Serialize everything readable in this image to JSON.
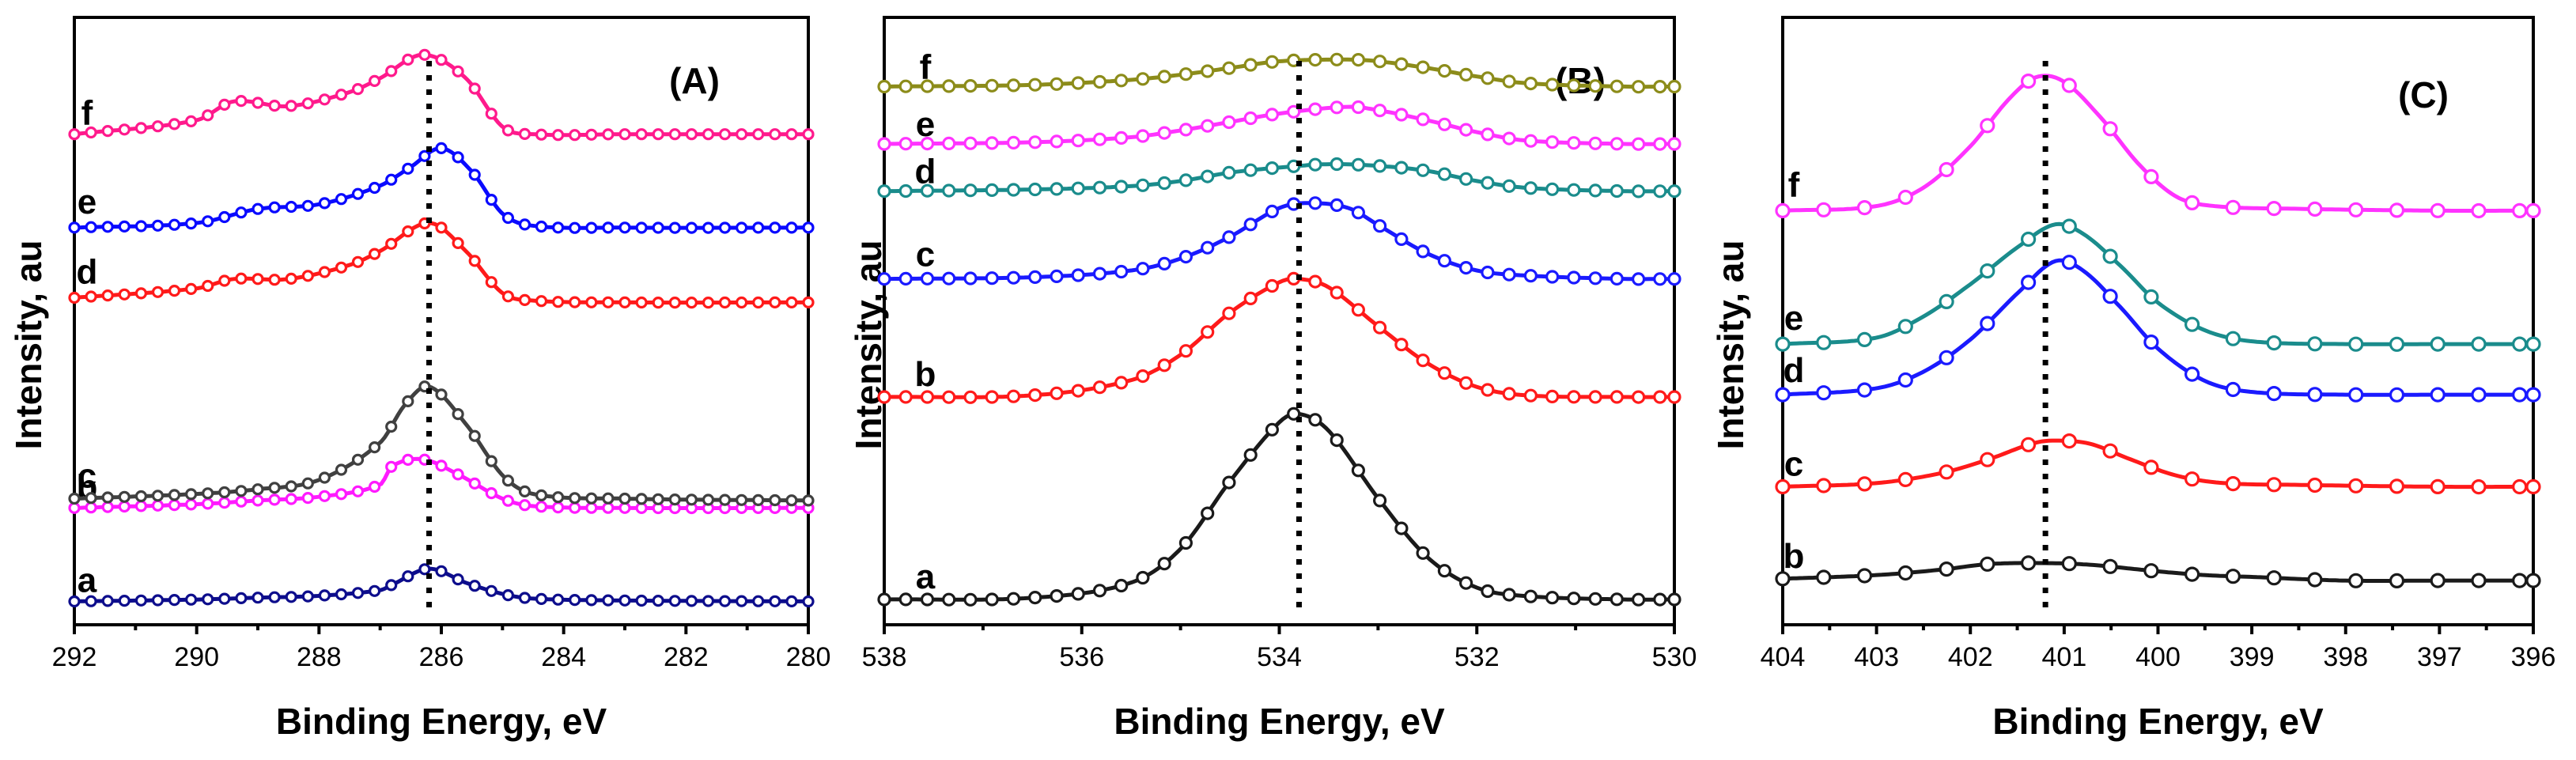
{
  "chart_data": [
    {
      "type": "line",
      "panel_label": "(A)",
      "xlabel": "Binding Energy, eV",
      "ylabel": "Intensity, au",
      "xlim": [
        292,
        280
      ],
      "x_ticks": [
        "292",
        "290",
        "288",
        "286",
        "284",
        "282",
        "280"
      ],
      "reference_line_x": 286.2,
      "y_ticks": false,
      "grid": false,
      "series": [
        {
          "name": "a",
          "color": "#0d0d8c",
          "x": [
            292,
            290,
            289,
            288,
            287,
            286.8,
            286.2,
            285.6,
            285,
            284.5,
            283,
            280
          ],
          "y": [
            0.0,
            0.02,
            0.04,
            0.06,
            0.12,
            0.18,
            0.35,
            0.2,
            0.08,
            0.03,
            0.01,
            0.0
          ]
        },
        {
          "name": "b",
          "color": "#ff1aff",
          "x": [
            292,
            290,
            289,
            288,
            287,
            286.8,
            286.3,
            285.7,
            285,
            284.5,
            283,
            280
          ],
          "y": [
            1.0,
            1.04,
            1.08,
            1.12,
            1.25,
            1.45,
            1.52,
            1.35,
            1.1,
            1.02,
            1.0,
            1.0
          ]
        },
        {
          "name": "c",
          "color": "#404040",
          "x": [
            292,
            290,
            289,
            288,
            287,
            286.6,
            286.2,
            285.6,
            285,
            284.5,
            283,
            280
          ],
          "y": [
            1.1,
            1.15,
            1.2,
            1.3,
            1.7,
            2.1,
            2.3,
            1.9,
            1.35,
            1.15,
            1.1,
            1.08
          ]
        },
        {
          "name": "d",
          "color": "#ff1a1a",
          "x": [
            292,
            290,
            289.4,
            288.5,
            287.5,
            287,
            286.2,
            285.6,
            285,
            284.5,
            283,
            280
          ],
          "y": [
            3.25,
            3.35,
            3.45,
            3.45,
            3.6,
            3.75,
            4.05,
            3.75,
            3.3,
            3.22,
            3.2,
            3.2
          ]
        },
        {
          "name": "e",
          "color": "#0a0aff",
          "x": [
            292,
            290,
            289,
            288,
            287,
            286.5,
            286,
            285.5,
            285,
            284.5,
            283,
            280
          ],
          "y": [
            4.0,
            4.05,
            4.2,
            4.25,
            4.45,
            4.65,
            4.85,
            4.6,
            4.15,
            4.02,
            4.0,
            4.0
          ]
        },
        {
          "name": "f",
          "color": "#ff1a8c",
          "x": [
            292,
            290,
            289.4,
            288.5,
            287.5,
            287,
            286.3,
            285.6,
            285,
            284.5,
            283,
            280
          ],
          "y": [
            5.0,
            5.15,
            5.35,
            5.3,
            5.45,
            5.6,
            5.85,
            5.6,
            5.08,
            5.0,
            5.0,
            5.0
          ]
        }
      ],
      "curve_labels": [
        "a",
        "b",
        "c",
        "d",
        "e",
        "f"
      ]
    },
    {
      "type": "line",
      "panel_label": "(B)",
      "xlabel": "Binding Energy, eV",
      "ylabel": "Intensity, au",
      "xlim": [
        538,
        530
      ],
      "x_ticks": [
        "538",
        "536",
        "534",
        "532",
        "530"
      ],
      "reference_line_x": 533.8,
      "y_ticks": false,
      "grid": false,
      "series": [
        {
          "name": "a",
          "color": "#1a1a1a",
          "x": [
            538,
            536.5,
            535.5,
            535,
            534.5,
            534,
            533.8,
            533.5,
            533,
            532.5,
            532,
            531.5,
            530.5,
            530
          ],
          "y": [
            0.0,
            0.01,
            0.1,
            0.3,
            0.7,
            1.05,
            1.1,
            1.0,
            0.6,
            0.25,
            0.07,
            0.02,
            0.0,
            0.0
          ]
        },
        {
          "name": "b",
          "color": "#ff1a1a",
          "x": [
            538,
            536.5,
            535.5,
            535,
            534.5,
            534,
            533.8,
            533.5,
            533,
            532.5,
            532,
            531.5,
            530.5,
            530
          ],
          "y": [
            1.2,
            1.21,
            1.3,
            1.45,
            1.7,
            1.88,
            1.9,
            1.85,
            1.62,
            1.4,
            1.26,
            1.21,
            1.2,
            1.2
          ]
        },
        {
          "name": "c",
          "color": "#1a1aff",
          "x": [
            538,
            536.5,
            535.5,
            535,
            534.5,
            534,
            533.7,
            533.3,
            533,
            532.5,
            532,
            531.5,
            530.5,
            530
          ],
          "y": [
            1.9,
            1.91,
            1.95,
            2.02,
            2.15,
            2.32,
            2.35,
            2.32,
            2.22,
            2.05,
            1.95,
            1.92,
            1.9,
            1.9
          ]
        },
        {
          "name": "d",
          "color": "#1a8c8c",
          "x": [
            538,
            536.5,
            535.5,
            535,
            534.5,
            534,
            533.5,
            533,
            532.5,
            532,
            531.5,
            530.5,
            530
          ],
          "y": [
            2.42,
            2.43,
            2.45,
            2.48,
            2.53,
            2.56,
            2.58,
            2.57,
            2.54,
            2.48,
            2.44,
            2.42,
            2.42
          ]
        },
        {
          "name": "e",
          "color": "#ff33ff",
          "x": [
            538,
            536.5,
            535.5,
            535,
            534.5,
            534,
            533.3,
            533,
            532.5,
            532,
            531.5,
            530.5,
            530
          ],
          "y": [
            2.7,
            2.71,
            2.74,
            2.78,
            2.83,
            2.88,
            2.92,
            2.9,
            2.84,
            2.77,
            2.72,
            2.7,
            2.7
          ]
        },
        {
          "name": "f",
          "color": "#8c8c1a",
          "x": [
            538,
            536.5,
            535.5,
            535,
            534.5,
            534,
            533.3,
            533,
            532.5,
            532,
            531.5,
            530.5,
            530
          ],
          "y": [
            3.04,
            3.05,
            3.08,
            3.11,
            3.15,
            3.19,
            3.2,
            3.19,
            3.15,
            3.1,
            3.06,
            3.04,
            3.04
          ]
        }
      ],
      "curve_labels": [
        "a",
        "b",
        "c",
        "d",
        "e",
        "f"
      ]
    },
    {
      "type": "line",
      "panel_label": "(C)",
      "xlabel": "Binding Energy, eV",
      "ylabel": "Intensity, au",
      "xlim": [
        404,
        396
      ],
      "x_ticks": [
        "404",
        "403",
        "402",
        "401",
        "400",
        "399",
        "398",
        "397",
        "396"
      ],
      "reference_line_x": 401.2,
      "y_ticks": false,
      "grid": false,
      "series": [
        {
          "name": "b",
          "color": "#1a1a1a",
          "x": [
            404,
            403,
            402.3,
            401.8,
            401.2,
            400.7,
            400,
            399.5,
            399,
            398,
            397,
            396
          ],
          "y": [
            0.0,
            0.04,
            0.1,
            0.16,
            0.17,
            0.15,
            0.08,
            0.04,
            0.02,
            -0.02,
            -0.02,
            -0.02
          ]
        },
        {
          "name": "c",
          "color": "#ff1a1a",
          "x": [
            404,
            403,
            402.3,
            401.8,
            401.3,
            401,
            400.7,
            400.3,
            399.8,
            399.3,
            398.5,
            397,
            396
          ],
          "y": [
            1.0,
            1.04,
            1.15,
            1.3,
            1.48,
            1.5,
            1.46,
            1.3,
            1.12,
            1.04,
            1.02,
            1.0,
            1.0
          ]
        },
        {
          "name": "d",
          "color": "#1a1aff",
          "x": [
            404,
            403,
            402.5,
            402,
            401.5,
            401.1,
            400.8,
            400.4,
            400,
            399.5,
            399,
            398,
            397,
            396
          ],
          "y": [
            2.0,
            2.07,
            2.25,
            2.6,
            3.1,
            3.45,
            3.35,
            2.95,
            2.5,
            2.15,
            2.03,
            2.0,
            2.0,
            2.0
          ]
        },
        {
          "name": "e",
          "color": "#1a8c8c",
          "x": [
            404,
            403,
            402.5,
            402,
            401.5,
            401.1,
            400.8,
            400.4,
            400,
            399.5,
            399,
            398,
            397,
            396
          ],
          "y": [
            2.55,
            2.62,
            2.85,
            3.2,
            3.6,
            3.85,
            3.75,
            3.4,
            3.0,
            2.7,
            2.58,
            2.55,
            2.55,
            2.55
          ]
        },
        {
          "name": "f",
          "color": "#ff33ff",
          "x": [
            404,
            403,
            402.5,
            402,
            401.6,
            401.3,
            401,
            400.6,
            400.2,
            399.8,
            399.4,
            398.5,
            397,
            396
          ],
          "y": [
            4.0,
            4.05,
            4.25,
            4.7,
            5.2,
            5.45,
            5.4,
            5.0,
            4.5,
            4.15,
            4.05,
            4.02,
            4.0,
            4.0
          ]
        }
      ],
      "curve_labels": [
        "b",
        "c",
        "d",
        "e",
        "f"
      ]
    }
  ]
}
